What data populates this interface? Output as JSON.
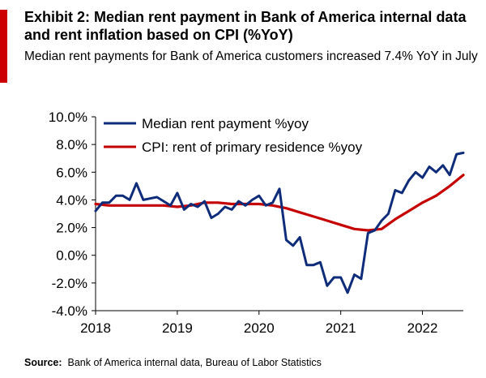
{
  "header": {
    "title": "Exhibit 2: Median rent payment in Bank  of America internal data and rent inflation based on CPI (%YoY)",
    "subtitle": "Median rent payments for Bank of America customers increased 7.4% YoY in July"
  },
  "footer": {
    "source_label": "Source:",
    "source_text": "Bank of America internal data, Bureau of Labor Statistics"
  },
  "colors": {
    "accent": "#cc0000",
    "series_median": "#0f2c7a",
    "series_cpi": "#c40000",
    "axis": "#000000"
  },
  "chart_data": {
    "type": "line",
    "title": "",
    "xlabel": "",
    "ylabel": "",
    "ylim": [
      -4.0,
      10.0
    ],
    "xlim": [
      "2018-01",
      "2022-07"
    ],
    "y_ticks": [
      "10.0%",
      "8.0%",
      "6.0%",
      "4.0%",
      "2.0%",
      "0.0%",
      "-2.0%",
      "-4.0%"
    ],
    "y_tick_values": [
      10,
      8,
      6,
      4,
      2,
      0,
      -2,
      -4
    ],
    "x_ticks": [
      "2018",
      "2019",
      "2020",
      "2021",
      "2022"
    ],
    "x_tick_values": [
      "2018-01",
      "2019-01",
      "2020-01",
      "2021-01",
      "2022-01"
    ],
    "grid": false,
    "legend_position": "top-left",
    "series": [
      {
        "name": "Median rent payment %yoy",
        "color": "#0f2c7a",
        "points": [
          [
            "2018-01",
            3.2
          ],
          [
            "2018-02",
            3.8
          ],
          [
            "2018-03",
            3.8
          ],
          [
            "2018-04",
            4.3
          ],
          [
            "2018-05",
            4.3
          ],
          [
            "2018-06",
            4.0
          ],
          [
            "2018-07",
            5.2
          ],
          [
            "2018-08",
            4.0
          ],
          [
            "2018-09",
            4.1
          ],
          [
            "2018-10",
            4.2
          ],
          [
            "2018-11",
            3.9
          ],
          [
            "2018-12",
            3.6
          ],
          [
            "2019-01",
            4.5
          ],
          [
            "2019-02",
            3.3
          ],
          [
            "2019-03",
            3.7
          ],
          [
            "2019-04",
            3.5
          ],
          [
            "2019-05",
            3.9
          ],
          [
            "2019-06",
            2.7
          ],
          [
            "2019-07",
            3.0
          ],
          [
            "2019-08",
            3.5
          ],
          [
            "2019-09",
            3.3
          ],
          [
            "2019-10",
            3.9
          ],
          [
            "2019-11",
            3.6
          ],
          [
            "2019-12",
            4.0
          ],
          [
            "2020-01",
            4.3
          ],
          [
            "2020-02",
            3.6
          ],
          [
            "2020-03",
            3.8
          ],
          [
            "2020-04",
            4.8
          ],
          [
            "2020-05",
            1.1
          ],
          [
            "2020-06",
            0.7
          ],
          [
            "2020-07",
            1.3
          ],
          [
            "2020-08",
            -0.7
          ],
          [
            "2020-09",
            -0.7
          ],
          [
            "2020-10",
            -0.5
          ],
          [
            "2020-11",
            -2.2
          ],
          [
            "2020-12",
            -1.6
          ],
          [
            "2021-01",
            -1.6
          ],
          [
            "2021-02",
            -2.7
          ],
          [
            "2021-03",
            -1.4
          ],
          [
            "2021-04",
            -1.7
          ],
          [
            "2021-05",
            1.6
          ],
          [
            "2021-06",
            1.8
          ],
          [
            "2021-07",
            2.5
          ],
          [
            "2021-08",
            3.0
          ],
          [
            "2021-09",
            4.7
          ],
          [
            "2021-10",
            4.5
          ],
          [
            "2021-11",
            5.4
          ],
          [
            "2021-12",
            6.0
          ],
          [
            "2022-01",
            5.6
          ],
          [
            "2022-02",
            6.4
          ],
          [
            "2022-03",
            6.0
          ],
          [
            "2022-04",
            6.5
          ],
          [
            "2022-05",
            5.8
          ],
          [
            "2022-06",
            7.3
          ],
          [
            "2022-07",
            7.4
          ]
        ]
      },
      {
        "name": "CPI: rent of primary residence %yoy",
        "color": "#c40000",
        "points": [
          [
            "2018-01",
            3.7
          ],
          [
            "2018-03",
            3.6
          ],
          [
            "2018-05",
            3.6
          ],
          [
            "2018-07",
            3.6
          ],
          [
            "2018-09",
            3.6
          ],
          [
            "2018-11",
            3.6
          ],
          [
            "2019-01",
            3.5
          ],
          [
            "2019-03",
            3.6
          ],
          [
            "2019-05",
            3.8
          ],
          [
            "2019-07",
            3.8
          ],
          [
            "2019-09",
            3.7
          ],
          [
            "2019-11",
            3.7
          ],
          [
            "2020-01",
            3.7
          ],
          [
            "2020-03",
            3.6
          ],
          [
            "2020-05",
            3.4
          ],
          [
            "2020-07",
            3.1
          ],
          [
            "2020-09",
            2.8
          ],
          [
            "2020-11",
            2.5
          ],
          [
            "2021-01",
            2.2
          ],
          [
            "2021-03",
            1.9
          ],
          [
            "2021-05",
            1.8
          ],
          [
            "2021-07",
            1.9
          ],
          [
            "2021-09",
            2.6
          ],
          [
            "2021-11",
            3.2
          ],
          [
            "2022-01",
            3.8
          ],
          [
            "2022-03",
            4.3
          ],
          [
            "2022-05",
            5.0
          ],
          [
            "2022-07",
            5.8
          ]
        ]
      }
    ]
  }
}
